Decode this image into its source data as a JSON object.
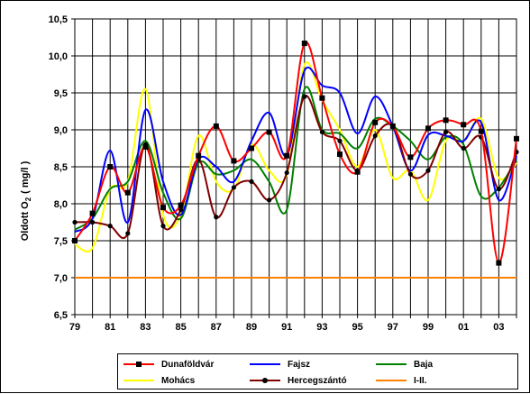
{
  "chart_data": {
    "type": "line",
    "title": "",
    "xlabel": "",
    "ylabel": "Oldott O2 ( mg/l )",
    "ylim": [
      6.5,
      10.5
    ],
    "xlim": [
      79,
      104
    ],
    "yticks": [
      "6,5",
      "7,0",
      "7,5",
      "8,0",
      "8,5",
      "9,0",
      "9,5",
      "10,0",
      "10,5"
    ],
    "xtick_labels": [
      "79",
      "81",
      "83",
      "85",
      "87",
      "89",
      "91",
      "93",
      "95",
      "97",
      "99",
      "01",
      "03"
    ],
    "grid": true,
    "legend_position": "bottom",
    "x": [
      79,
      80,
      81,
      82,
      83,
      84,
      85,
      86,
      87,
      88,
      89,
      90,
      91,
      92,
      93,
      94,
      95,
      96,
      97,
      98,
      99,
      100,
      101,
      102,
      103,
      104
    ],
    "series": [
      {
        "name": "Dunaföldvár",
        "color": "#ff0000",
        "marker": "square",
        "values": [
          7.5,
          7.87,
          8.5,
          8.15,
          8.77,
          7.95,
          7.98,
          8.65,
          9.05,
          8.58,
          8.75,
          8.97,
          8.65,
          10.17,
          9.43,
          8.67,
          8.43,
          9.1,
          9.05,
          8.63,
          9.02,
          9.13,
          9.07,
          8.98,
          7.2,
          8.88
        ]
      },
      {
        "name": "Fajsz",
        "color": "#0000ff",
        "marker": "none",
        "values": [
          7.62,
          7.8,
          8.72,
          7.75,
          9.27,
          8.3,
          7.85,
          8.6,
          8.5,
          8.3,
          8.85,
          9.23,
          8.65,
          9.8,
          9.6,
          9.5,
          8.95,
          9.45,
          9.05,
          8.45,
          8.93,
          8.92,
          8.85,
          9.1,
          8.05,
          8.65
        ]
      },
      {
        "name": "Baja",
        "color": "#008000",
        "marker": "none",
        "values": [
          7.65,
          7.8,
          8.2,
          8.3,
          8.85,
          8.15,
          7.8,
          8.55,
          8.4,
          8.45,
          8.6,
          8.3,
          7.92,
          9.55,
          9.0,
          8.95,
          8.75,
          9.15,
          9.05,
          8.85,
          8.6,
          8.9,
          8.8,
          8.1,
          8.22,
          8.6
        ]
      },
      {
        "name": "Mohács",
        "color": "#ffff00",
        "marker": "none",
        "values": [
          7.45,
          7.4,
          8.2,
          8.3,
          9.55,
          7.85,
          7.85,
          8.92,
          8.3,
          8.2,
          8.8,
          8.45,
          8.4,
          9.88,
          9.4,
          9.0,
          8.5,
          9.0,
          8.35,
          8.45,
          8.05,
          8.85,
          8.85,
          9.15,
          8.35,
          8.55
        ]
      },
      {
        "name": "Hercegszántó",
        "color": "#800000",
        "marker": "cross",
        "values": [
          7.75,
          7.75,
          7.7,
          7.6,
          8.8,
          7.7,
          7.92,
          8.6,
          7.82,
          8.22,
          8.3,
          8.05,
          8.42,
          9.45,
          8.97,
          8.85,
          8.45,
          8.92,
          9.05,
          8.4,
          8.45,
          8.97,
          8.75,
          8.9,
          8.2,
          8.7
        ]
      },
      {
        "name": "I-II.",
        "color": "#ff8000",
        "marker": "none",
        "values": [
          7.0,
          7.0,
          7.0,
          7.0,
          7.0,
          7.0,
          7.0,
          7.0,
          7.0,
          7.0,
          7.0,
          7.0,
          7.0,
          7.0,
          7.0,
          7.0,
          7.0,
          7.0,
          7.0,
          7.0,
          7.0,
          7.0,
          7.0,
          7.0,
          7.0,
          7.0
        ]
      }
    ]
  },
  "ylabel_text": "Oldott O",
  "ylabel_sub": "2",
  "ylabel_unit": "( mg/l )"
}
